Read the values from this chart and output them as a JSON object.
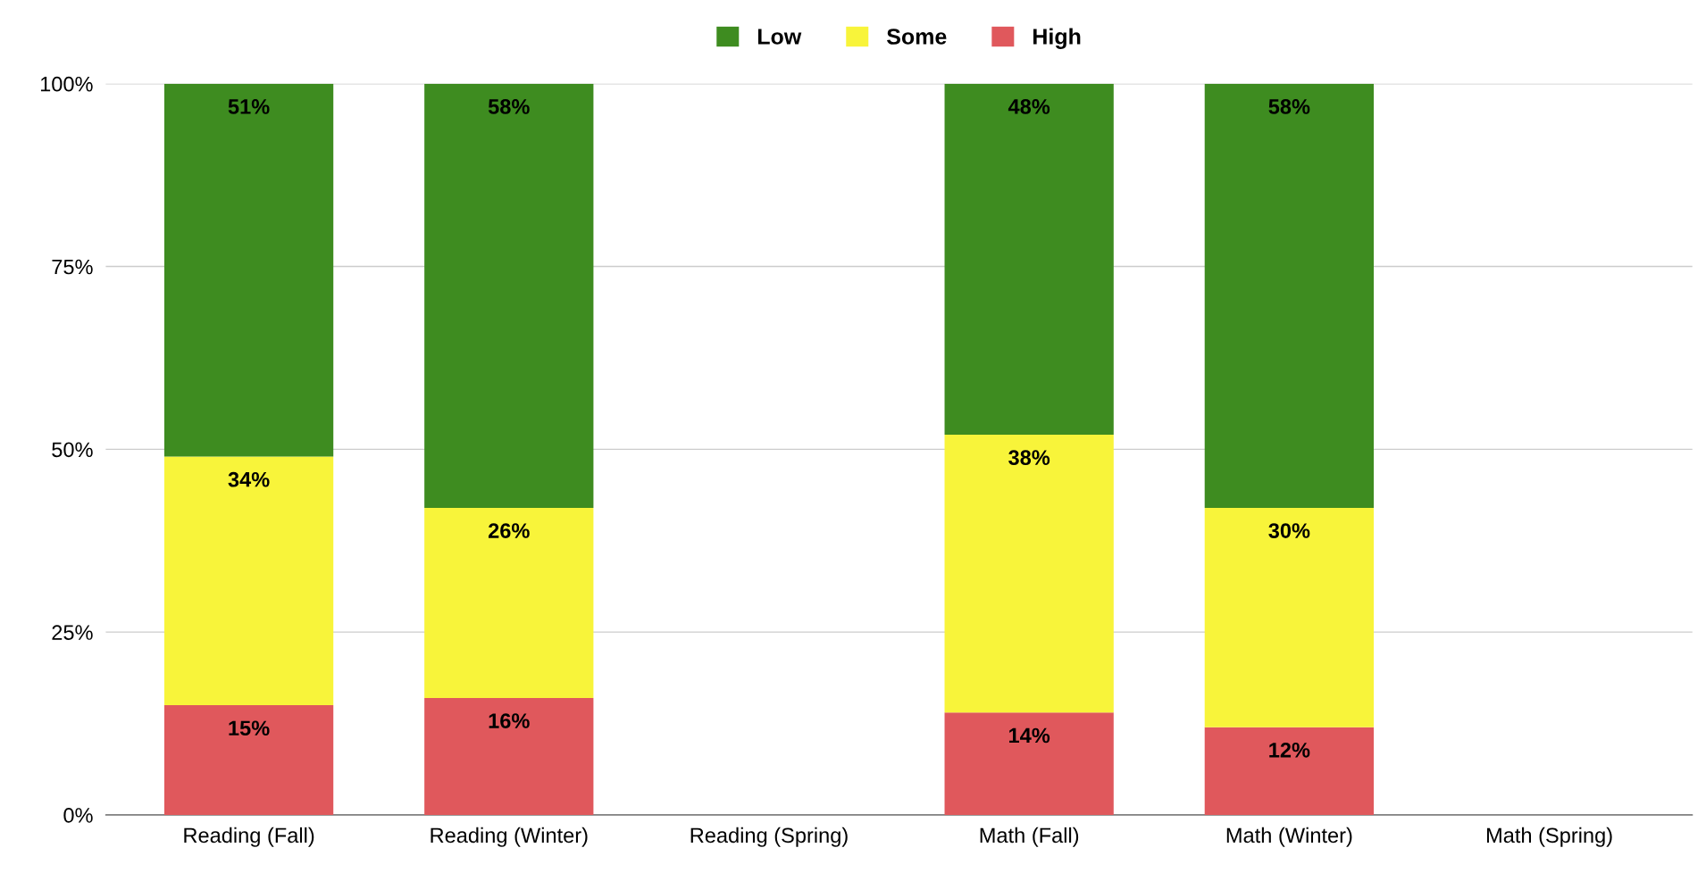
{
  "chart_data": {
    "type": "bar",
    "stacked": true,
    "categories": [
      "Reading (Fall)",
      "Reading (Winter)",
      "Reading (Spring)",
      "Math (Fall)",
      "Math (Winter)",
      "Math (Spring)"
    ],
    "series": [
      {
        "name": "High",
        "color": "#e0585c",
        "values": [
          15,
          16,
          null,
          14,
          12,
          null
        ],
        "value_labels": [
          "15%",
          "16%",
          null,
          "14%",
          "12%",
          null
        ]
      },
      {
        "name": "Some",
        "color": "#f8f43a",
        "values": [
          34,
          26,
          null,
          38,
          30,
          null
        ],
        "value_labels": [
          "34%",
          "26%",
          null,
          "38%",
          "30%",
          null
        ]
      },
      {
        "name": "Low",
        "color": "#3e8c20",
        "values": [
          51,
          58,
          null,
          48,
          58,
          null
        ],
        "value_labels": [
          "51%",
          "58%",
          null,
          "48%",
          "58%",
          null
        ]
      }
    ],
    "ylim": [
      0,
      100
    ],
    "yticks": [
      {
        "value": 0,
        "label": "0%"
      },
      {
        "value": 25,
        "label": "25%"
      },
      {
        "value": 50,
        "label": "50%"
      },
      {
        "value": 75,
        "label": "75%"
      },
      {
        "value": 100,
        "label": "100%"
      }
    ],
    "grid": "y",
    "legend": "top"
  }
}
